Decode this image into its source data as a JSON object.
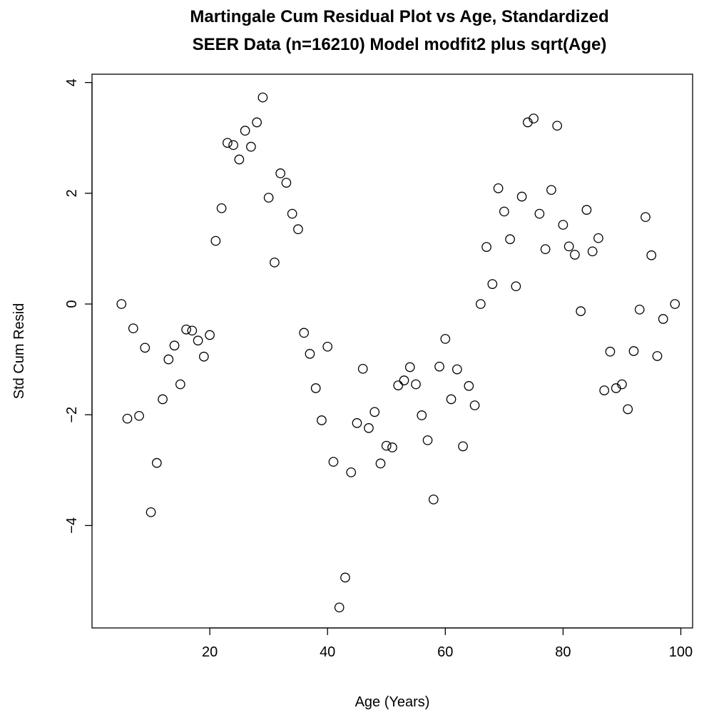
{
  "chart_data": {
    "type": "scatter",
    "title": [
      "Martingale Cum Residual Plot vs Age, Standardized",
      "SEER Data (n=16210) Model modfit2 plus sqrt(Age)"
    ],
    "xlabel": "Age (Years)",
    "ylabel": "Std Cum Resid",
    "xlim": [
      0,
      102
    ],
    "ylim": [
      -5.85,
      4.15
    ],
    "x_ticks": [
      20,
      40,
      60,
      80,
      100
    ],
    "x_tick_labels": [
      "20",
      "40",
      "60",
      "80",
      "100"
    ],
    "y_ticks": [
      -4,
      -2,
      0,
      2,
      4
    ],
    "y_tick_labels": [
      "−4",
      "−2",
      "0",
      "2",
      "4"
    ],
    "grid": false,
    "marker": "open-circle",
    "points": [
      [
        5,
        0.0
      ],
      [
        6,
        -2.07
      ],
      [
        7,
        -0.44
      ],
      [
        8,
        -2.02
      ],
      [
        9,
        -0.79
      ],
      [
        10,
        -3.76
      ],
      [
        11,
        -2.87
      ],
      [
        12,
        -1.72
      ],
      [
        13,
        -1.0
      ],
      [
        14,
        -0.75
      ],
      [
        15,
        -1.45
      ],
      [
        16,
        -0.46
      ],
      [
        17,
        -0.48
      ],
      [
        18,
        -0.66
      ],
      [
        19,
        -0.95
      ],
      [
        20,
        -0.56
      ],
      [
        21,
        1.14
      ],
      [
        22,
        1.73
      ],
      [
        23,
        2.91
      ],
      [
        24,
        2.87
      ],
      [
        25,
        2.61
      ],
      [
        26,
        3.13
      ],
      [
        27,
        2.84
      ],
      [
        28,
        3.28
      ],
      [
        29,
        3.73
      ],
      [
        30,
        1.92
      ],
      [
        31,
        0.75
      ],
      [
        32,
        2.36
      ],
      [
        33,
        2.19
      ],
      [
        34,
        1.63
      ],
      [
        35,
        1.35
      ],
      [
        36,
        -0.52
      ],
      [
        37,
        -0.9
      ],
      [
        38,
        -1.52
      ],
      [
        39,
        -2.1
      ],
      [
        40,
        -0.77
      ],
      [
        41,
        -2.85
      ],
      [
        42,
        -5.48
      ],
      [
        43,
        -4.94
      ],
      [
        44,
        -3.04
      ],
      [
        45,
        -2.15
      ],
      [
        46,
        -1.17
      ],
      [
        47,
        -2.24
      ],
      [
        48,
        -1.95
      ],
      [
        49,
        -2.88
      ],
      [
        50,
        -2.56
      ],
      [
        51,
        -2.59
      ],
      [
        52,
        -1.47
      ],
      [
        53,
        -1.38
      ],
      [
        54,
        -1.14
      ],
      [
        55,
        -1.45
      ],
      [
        56,
        -2.01
      ],
      [
        57,
        -2.46
      ],
      [
        58,
        -3.53
      ],
      [
        59,
        -1.13
      ],
      [
        60,
        -0.63
      ],
      [
        61,
        -1.72
      ],
      [
        62,
        -1.18
      ],
      [
        63,
        -2.57
      ],
      [
        64,
        -1.48
      ],
      [
        65,
        -1.83
      ],
      [
        66,
        0.0
      ],
      [
        67,
        1.03
      ],
      [
        68,
        0.36
      ],
      [
        69,
        2.09
      ],
      [
        70,
        1.67
      ],
      [
        71,
        1.17
      ],
      [
        72,
        0.32
      ],
      [
        73,
        1.94
      ],
      [
        74,
        3.28
      ],
      [
        75,
        3.35
      ],
      [
        76,
        1.63
      ],
      [
        77,
        0.99
      ],
      [
        78,
        2.06
      ],
      [
        79,
        3.22
      ],
      [
        80,
        1.43
      ],
      [
        81,
        1.04
      ],
      [
        82,
        0.89
      ],
      [
        83,
        -0.13
      ],
      [
        84,
        1.7
      ],
      [
        85,
        0.95
      ],
      [
        86,
        1.19
      ],
      [
        87,
        -1.56
      ],
      [
        88,
        -0.86
      ],
      [
        89,
        -1.52
      ],
      [
        90,
        -1.45
      ],
      [
        91,
        -1.9
      ],
      [
        92,
        -0.85
      ],
      [
        93,
        -0.1
      ],
      [
        94,
        1.57
      ],
      [
        95,
        0.88
      ],
      [
        96,
        -0.94
      ],
      [
        97,
        -0.27
      ],
      [
        99,
        0.0
      ]
    ]
  }
}
